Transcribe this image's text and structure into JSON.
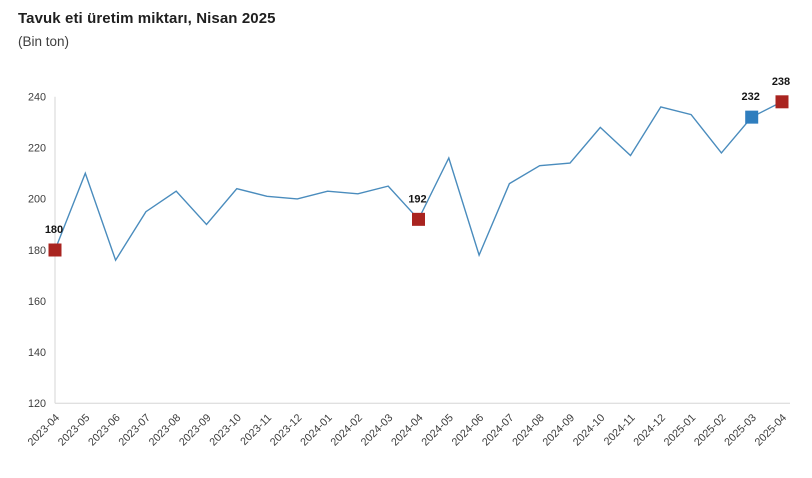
{
  "header": {
    "title": "Tavuk eti üretim miktarı, Nisan 2025",
    "subtitle": "(Bin ton)"
  },
  "chart_data": {
    "type": "line",
    "title": "Tavuk eti üretim miktarı, Nisan 2025",
    "ylabel": "(Bin ton)",
    "xlabel": "",
    "categories": [
      "2023-04",
      "2023-05",
      "2023-06",
      "2023-07",
      "2023-08",
      "2023-09",
      "2023-10",
      "2023-11",
      "2023-12",
      "2024-01",
      "2024-02",
      "2024-03",
      "2024-04",
      "2024-05",
      "2024-06",
      "2024-07",
      "2024-08",
      "2024-09",
      "2024-10",
      "2024-11",
      "2024-12",
      "2025-01",
      "2025-02",
      "2025-03",
      "2025-04"
    ],
    "values": [
      180,
      210,
      176,
      195,
      203,
      190,
      204,
      201,
      200,
      203,
      202,
      205,
      192,
      216,
      178,
      206,
      213,
      214,
      228,
      217,
      236,
      233,
      218,
      232,
      238
    ],
    "ylim": [
      120,
      240
    ],
    "yticks": [
      120,
      140,
      160,
      180,
      200,
      220,
      240
    ],
    "grid": false,
    "legend": "none",
    "line_color": "#4a8cbd",
    "axis_color": "#d6d6d6",
    "tick_label_color": "#3d3d3d",
    "markers": [
      {
        "category": "2023-04",
        "index": 0,
        "value": 180,
        "label": "180",
        "color": "#a92420"
      },
      {
        "category": "2024-04",
        "index": 12,
        "value": 192,
        "label": "192",
        "color": "#a92420"
      },
      {
        "category": "2025-03",
        "index": 23,
        "value": 232,
        "label": "232",
        "color": "#2f7ebe"
      },
      {
        "category": "2025-04",
        "index": 24,
        "value": 238,
        "label": "238",
        "color": "#a92420"
      }
    ]
  }
}
